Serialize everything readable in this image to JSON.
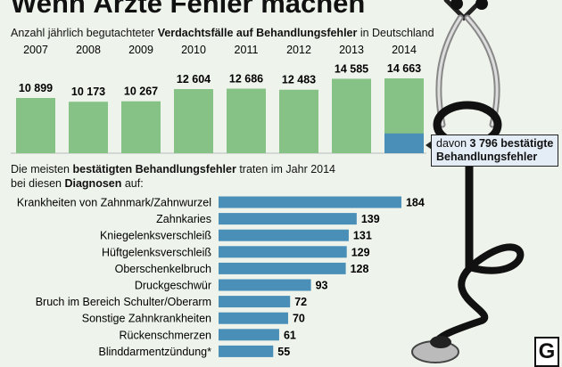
{
  "title": "Wenn Ärzte Fehler machen",
  "subtitle_pre": "Anzahl jährlich begutachteter ",
  "subtitle_bold": "Verdachtsfälle auf Behandlungsfehler",
  "subtitle_post": " in Deutschland",
  "callout": {
    "pre": "davon ",
    "bold": "3 796 bestätigte",
    "line2": "Behandlungsfehler"
  },
  "section2": {
    "l1_pre": "Die meisten ",
    "l1_bold": "bestätigten Behandlungsfehler",
    "l1_post": " traten im Jahr 2014",
    "l2_pre": "bei diesen ",
    "l2_bold": "Diagnosen",
    "l2_post": " auf:"
  },
  "logo": "G",
  "colors": {
    "green": "#86c185",
    "blue": "#4a8fb8",
    "background": "#eef4ec"
  },
  "chart_data": [
    {
      "type": "bar",
      "categories": [
        "2007",
        "2008",
        "2009",
        "2010",
        "2011",
        "2012",
        "2013",
        "2014"
      ],
      "labels": [
        "10 899",
        "10 173",
        "10 267",
        "12 604",
        "12 686",
        "12 483",
        "14 585",
        "14 663"
      ],
      "values": [
        10899,
        10173,
        10267,
        12604,
        12686,
        12483,
        14585,
        14663
      ],
      "highlight": {
        "category": "2014",
        "value": 3796
      }
    },
    {
      "type": "bar",
      "orientation": "horizontal",
      "categories": [
        "Krankheiten von Zahnmark/Zahnwurzel",
        "Zahnkaries",
        "Kniegelenksverschleiß",
        "Hüftgelenksverschleiß",
        "Oberschenkelbruch",
        "Druckgeschwür",
        "Bruch im Bereich Schulter/Oberarm",
        "Sonstige Zahnkrankheiten",
        "Rückenschmerzen",
        "Blinddarmentzündung*"
      ],
      "values": [
        184,
        139,
        131,
        129,
        128,
        93,
        72,
        70,
        61,
        55
      ]
    }
  ]
}
